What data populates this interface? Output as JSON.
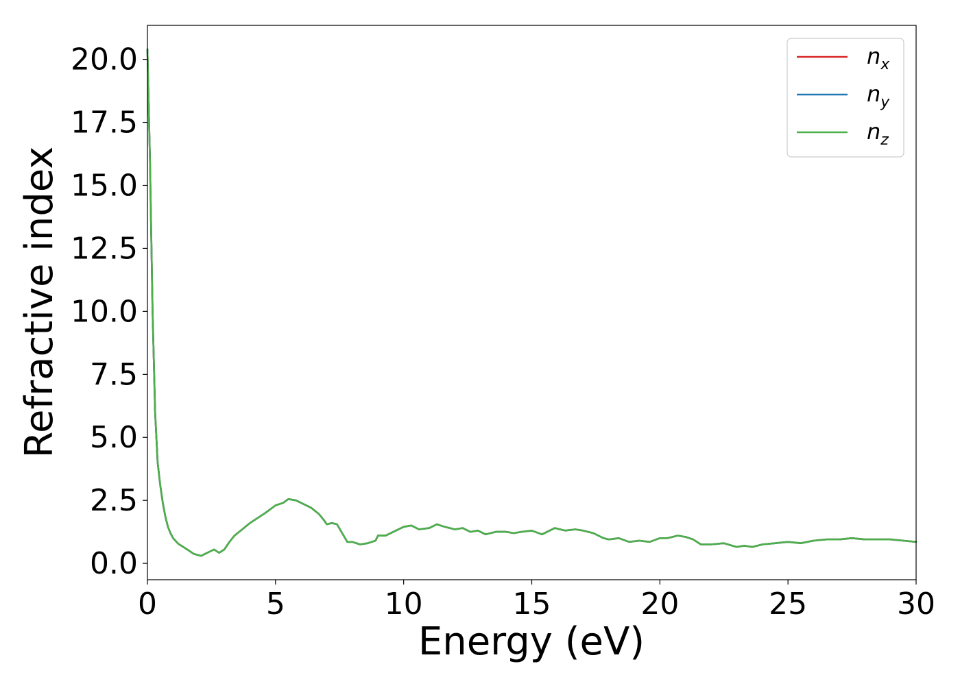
{
  "chart_data": {
    "type": "line",
    "xlabel": "Energy (eV)",
    "ylabel": "Refractive index",
    "xlim": [
      0,
      30
    ],
    "ylim": [
      -0.65,
      21.35
    ],
    "x_ticks": [
      0,
      5,
      10,
      15,
      20,
      25,
      30
    ],
    "x_tick_labels": [
      "0",
      "5",
      "10",
      "15",
      "20",
      "25",
      "30"
    ],
    "y_ticks": [
      0,
      2.5,
      5,
      7.5,
      10,
      12.5,
      15,
      17.5,
      20
    ],
    "y_tick_labels": [
      "0.0",
      "2.5",
      "5.0",
      "7.5",
      "10.0",
      "12.5",
      "15.0",
      "17.5",
      "20.0"
    ],
    "grid": false,
    "legend": {
      "position": "upper-right",
      "entries": [
        {
          "base": "n",
          "sub": "x",
          "color": "#d62728"
        },
        {
          "base": "n",
          "sub": "y",
          "color": "#1f77b4"
        },
        {
          "base": "n",
          "sub": "z",
          "color": "#4daf4a"
        }
      ]
    },
    "x": [
      0,
      0.1,
      0.2,
      0.3,
      0.4,
      0.5,
      0.6,
      0.7,
      0.8,
      0.9,
      1.0,
      1.2,
      1.4,
      1.6,
      1.8,
      2.0,
      2.1,
      2.2,
      2.4,
      2.6,
      2.8,
      3.0,
      3.2,
      3.4,
      3.7,
      4.0,
      4.3,
      4.6,
      5.0,
      5.3,
      5.5,
      5.8,
      6.1,
      6.4,
      6.7,
      6.9,
      7.0,
      7.2,
      7.4,
      7.6,
      7.8,
      8.0,
      8.3,
      8.6,
      8.9,
      9.0,
      9.3,
      9.6,
      10.0,
      10.3,
      10.6,
      11.0,
      11.3,
      11.6,
      12.0,
      12.3,
      12.6,
      12.9,
      13.2,
      13.6,
      14.0,
      14.3,
      14.6,
      15.0,
      15.4,
      15.9,
      16.3,
      16.7,
      17.0,
      17.4,
      17.8,
      18.0,
      18.4,
      18.8,
      19.2,
      19.6,
      20.0,
      20.3,
      20.7,
      21.0,
      21.3,
      21.6,
      22.0,
      22.5,
      23.0,
      23.3,
      23.6,
      24.0,
      24.5,
      25.0,
      25.5,
      26.0,
      26.5,
      27.0,
      27.5,
      28.0,
      28.5,
      29.0,
      29.5,
      30.0
    ],
    "series": [
      {
        "name": "n_x",
        "color": "#d62728",
        "y": [
          20.4,
          16.0,
          10.0,
          6.0,
          4.0,
          3.1,
          2.4,
          1.85,
          1.45,
          1.2,
          1.0,
          0.78,
          0.65,
          0.52,
          0.38,
          0.32,
          0.3,
          0.35,
          0.45,
          0.55,
          0.42,
          0.55,
          0.85,
          1.1,
          1.35,
          1.6,
          1.8,
          2.0,
          2.3,
          2.4,
          2.55,
          2.5,
          2.35,
          2.2,
          1.95,
          1.7,
          1.55,
          1.6,
          1.55,
          1.2,
          0.85,
          0.85,
          0.75,
          0.8,
          0.9,
          1.1,
          1.1,
          1.25,
          1.45,
          1.5,
          1.35,
          1.4,
          1.55,
          1.45,
          1.35,
          1.4,
          1.25,
          1.3,
          1.15,
          1.25,
          1.25,
          1.2,
          1.25,
          1.3,
          1.15,
          1.4,
          1.3,
          1.35,
          1.3,
          1.2,
          1.0,
          0.95,
          1.0,
          0.85,
          0.9,
          0.85,
          1.0,
          1.0,
          1.1,
          1.05,
          0.95,
          0.75,
          0.75,
          0.8,
          0.65,
          0.7,
          0.65,
          0.75,
          0.8,
          0.85,
          0.8,
          0.9,
          0.95,
          0.95,
          1.0,
          0.95,
          0.95,
          0.95,
          0.9,
          0.85
        ]
      },
      {
        "name": "n_y",
        "color": "#1f77b4",
        "y": [
          20.4,
          16.0,
          10.0,
          6.0,
          4.0,
          3.1,
          2.4,
          1.85,
          1.45,
          1.2,
          1.0,
          0.78,
          0.65,
          0.52,
          0.38,
          0.32,
          0.3,
          0.35,
          0.45,
          0.55,
          0.42,
          0.55,
          0.85,
          1.1,
          1.35,
          1.6,
          1.8,
          2.0,
          2.3,
          2.4,
          2.55,
          2.5,
          2.35,
          2.2,
          1.95,
          1.7,
          1.55,
          1.6,
          1.55,
          1.2,
          0.85,
          0.85,
          0.75,
          0.8,
          0.9,
          1.1,
          1.1,
          1.25,
          1.45,
          1.5,
          1.35,
          1.4,
          1.55,
          1.45,
          1.35,
          1.4,
          1.25,
          1.3,
          1.15,
          1.25,
          1.25,
          1.2,
          1.25,
          1.3,
          1.15,
          1.4,
          1.3,
          1.35,
          1.3,
          1.2,
          1.0,
          0.95,
          1.0,
          0.85,
          0.9,
          0.85,
          1.0,
          1.0,
          1.1,
          1.05,
          0.95,
          0.75,
          0.75,
          0.8,
          0.65,
          0.7,
          0.65,
          0.75,
          0.8,
          0.85,
          0.8,
          0.9,
          0.95,
          0.95,
          1.0,
          0.95,
          0.95,
          0.95,
          0.9,
          0.85
        ]
      },
      {
        "name": "n_z",
        "color": "#4daf4a",
        "y": [
          20.4,
          16.0,
          10.0,
          6.0,
          4.0,
          3.1,
          2.4,
          1.85,
          1.45,
          1.2,
          1.0,
          0.78,
          0.65,
          0.52,
          0.38,
          0.32,
          0.3,
          0.35,
          0.45,
          0.55,
          0.42,
          0.55,
          0.85,
          1.1,
          1.35,
          1.6,
          1.8,
          2.0,
          2.3,
          2.4,
          2.55,
          2.5,
          2.35,
          2.2,
          1.95,
          1.7,
          1.55,
          1.6,
          1.55,
          1.2,
          0.85,
          0.85,
          0.75,
          0.8,
          0.9,
          1.1,
          1.1,
          1.25,
          1.45,
          1.5,
          1.35,
          1.4,
          1.55,
          1.45,
          1.35,
          1.4,
          1.25,
          1.3,
          1.15,
          1.25,
          1.25,
          1.2,
          1.25,
          1.3,
          1.15,
          1.4,
          1.3,
          1.35,
          1.3,
          1.2,
          1.0,
          0.95,
          1.0,
          0.85,
          0.9,
          0.85,
          1.0,
          1.0,
          1.1,
          1.05,
          0.95,
          0.75,
          0.75,
          0.8,
          0.65,
          0.7,
          0.65,
          0.75,
          0.8,
          0.85,
          0.8,
          0.9,
          0.95,
          0.95,
          1.0,
          0.95,
          0.95,
          0.95,
          0.9,
          0.85
        ]
      }
    ]
  }
}
